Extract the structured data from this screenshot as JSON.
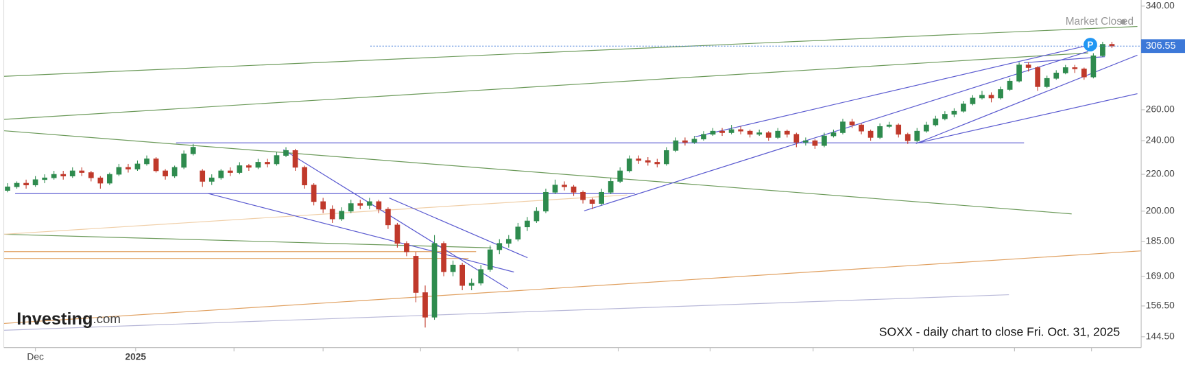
{
  "chart_data": {
    "type": "candlestick",
    "title": "SOXX - daily chart to close Fri. Oct. 31, 2025",
    "status": "Market Closed",
    "brand": "Investing",
    "brand_suffix": ".com",
    "marker": "P",
    "log_scale": true,
    "up_color": "#2e8b4e",
    "down_color": "#c0392b",
    "ylim": [
      140.5,
      345.4
    ],
    "yticks": [
      {
        "value": 340,
        "label": "340.00"
      },
      {
        "value": 260,
        "label": "260.00"
      },
      {
        "value": 240,
        "label": "240.00"
      },
      {
        "value": 220,
        "label": "220.00"
      },
      {
        "value": 200,
        "label": "200.00"
      },
      {
        "value": 185,
        "label": "185.00"
      },
      {
        "value": 169,
        "label": "169.00"
      },
      {
        "value": 156.5,
        "label": "156.50"
      },
      {
        "value": 144.5,
        "label": "144.50"
      }
    ],
    "xticks": [
      {
        "value": 3,
        "label": "Dec"
      },
      {
        "value": 13.8,
        "label": "2025"
      },
      {
        "value": 24.4,
        "label": null
      },
      {
        "value": 34,
        "label": null
      },
      {
        "value": 44.5,
        "label": null
      },
      {
        "value": 55,
        "label": null
      },
      {
        "value": 65.8,
        "label": null
      },
      {
        "value": 75.7,
        "label": null
      },
      {
        "value": 86.8,
        "label": null
      },
      {
        "value": 97.6,
        "label": null
      },
      {
        "value": 108.5,
        "label": null
      },
      {
        "value": 116.8,
        "label": null
      }
    ],
    "ohlc": [
      [
        211,
        215,
        210,
        213
      ],
      [
        213,
        216,
        212,
        215
      ],
      [
        215,
        217,
        212,
        214
      ],
      [
        214,
        219,
        213,
        217
      ],
      [
        217,
        220,
        215,
        218
      ],
      [
        218,
        222,
        217,
        220
      ],
      [
        220,
        222,
        217,
        219
      ],
      [
        219,
        224,
        218,
        222
      ],
      [
        222,
        224,
        219,
        221
      ],
      [
        221,
        222,
        216,
        218
      ],
      [
        218,
        219,
        212,
        215
      ],
      [
        215,
        221,
        214,
        220
      ],
      [
        220,
        226,
        219,
        224
      ],
      [
        224,
        226,
        221,
        223
      ],
      [
        223,
        228,
        222,
        226
      ],
      [
        226,
        231,
        225,
        229
      ],
      [
        229,
        230,
        221,
        222
      ],
      [
        222,
        223,
        217,
        219
      ],
      [
        219,
        225,
        218,
        224
      ],
      [
        224,
        234,
        223,
        232
      ],
      [
        232,
        238,
        231,
        236
      ],
      [
        222,
        223,
        213,
        216
      ],
      [
        216,
        220,
        214,
        218
      ],
      [
        218,
        223,
        217,
        222
      ],
      [
        222,
        224,
        219,
        221
      ],
      [
        221,
        227,
        220,
        225
      ],
      [
        225,
        226,
        222,
        224
      ],
      [
        224,
        229,
        223,
        227
      ],
      [
        227,
        229,
        224,
        226
      ],
      [
        226,
        233,
        225,
        231
      ],
      [
        231,
        236,
        230,
        234
      ],
      [
        234,
        235,
        222,
        224
      ],
      [
        224,
        225,
        212,
        214
      ],
      [
        214,
        215,
        203,
        205
      ],
      [
        205,
        207,
        199,
        201
      ],
      [
        201,
        203,
        194,
        196
      ],
      [
        196,
        202,
        195,
        200
      ],
      [
        200,
        206,
        199,
        204
      ],
      [
        204,
        206,
        201,
        203
      ],
      [
        203,
        207,
        201,
        205
      ],
      [
        205,
        206,
        199,
        201
      ],
      [
        201,
        202,
        191,
        193
      ],
      [
        193,
        194,
        182,
        184
      ],
      [
        184,
        185,
        178,
        180
      ],
      [
        178,
        180,
        158,
        162
      ],
      [
        162,
        165,
        148,
        152
      ],
      [
        152,
        188,
        151,
        184
      ],
      [
        184,
        185,
        169,
        171
      ],
      [
        171,
        176,
        169,
        174
      ],
      [
        174,
        175,
        163,
        165
      ],
      [
        165,
        168,
        163,
        166
      ],
      [
        166,
        174,
        165,
        172
      ],
      [
        172,
        183,
        171,
        181
      ],
      [
        181,
        186,
        179,
        184
      ],
      [
        184,
        188,
        182,
        186
      ],
      [
        186,
        194,
        185,
        192
      ],
      [
        192,
        197,
        190,
        195
      ],
      [
        195,
        202,
        194,
        200
      ],
      [
        200,
        212,
        199,
        210
      ],
      [
        210,
        217,
        209,
        214
      ],
      [
        214,
        216,
        211,
        213
      ],
      [
        213,
        214,
        208,
        210
      ],
      [
        210,
        211,
        204,
        206
      ],
      [
        206,
        207,
        201,
        204
      ],
      [
        204,
        212,
        203,
        210
      ],
      [
        210,
        218,
        209,
        216
      ],
      [
        216,
        224,
        215,
        222
      ],
      [
        222,
        231,
        221,
        229
      ],
      [
        229,
        231,
        226,
        228
      ],
      [
        228,
        230,
        225,
        227
      ],
      [
        227,
        229,
        224,
        226
      ],
      [
        226,
        236,
        225,
        234
      ],
      [
        234,
        242,
        233,
        240
      ],
      [
        240,
        242,
        237,
        239
      ],
      [
        239,
        243,
        238,
        241
      ],
      [
        241,
        246,
        240,
        244
      ],
      [
        244,
        248,
        243,
        246
      ],
      [
        246,
        248,
        243,
        245
      ],
      [
        245,
        250,
        244,
        247
      ],
      [
        247,
        249,
        244,
        246
      ],
      [
        246,
        247,
        242,
        244
      ],
      [
        244,
        247,
        243,
        245
      ],
      [
        245,
        246,
        240,
        242
      ],
      [
        242,
        248,
        241,
        246
      ],
      [
        246,
        247,
        242,
        244
      ],
      [
        244,
        245,
        236,
        239
      ],
      [
        239,
        242,
        237,
        240
      ],
      [
        240,
        241,
        235,
        237
      ],
      [
        237,
        245,
        236,
        243
      ],
      [
        243,
        247,
        242,
        245
      ],
      [
        245,
        254,
        244,
        252
      ],
      [
        252,
        254,
        248,
        250
      ],
      [
        250,
        251,
        244,
        246
      ],
      [
        246,
        247,
        240,
        242
      ],
      [
        242,
        251,
        241,
        249
      ],
      [
        249,
        252,
        248,
        250
      ],
      [
        250,
        251,
        242,
        244
      ],
      [
        244,
        245,
        238,
        240
      ],
      [
        240,
        248,
        239,
        246
      ],
      [
        246,
        252,
        245,
        250
      ],
      [
        250,
        256,
        249,
        254
      ],
      [
        254,
        259,
        253,
        257
      ],
      [
        257,
        261,
        255,
        259
      ],
      [
        259,
        266,
        258,
        264
      ],
      [
        264,
        270,
        263,
        268
      ],
      [
        268,
        273,
        267,
        270
      ],
      [
        270,
        272,
        265,
        268
      ],
      [
        268,
        276,
        267,
        274
      ],
      [
        274,
        282,
        273,
        280
      ],
      [
        280,
        294,
        279,
        292
      ],
      [
        292,
        294,
        287,
        290
      ],
      [
        290,
        291,
        273,
        276
      ],
      [
        276,
        284,
        275,
        282
      ],
      [
        282,
        288,
        281,
        286
      ],
      [
        286,
        292,
        285,
        290
      ],
      [
        290,
        292,
        286,
        289
      ],
      [
        289,
        290,
        281,
        283
      ],
      [
        283,
        301,
        282,
        299
      ],
      [
        299,
        310,
        298,
        308
      ],
      [
        308,
        310,
        305,
        306.55
      ]
    ]
  }
}
